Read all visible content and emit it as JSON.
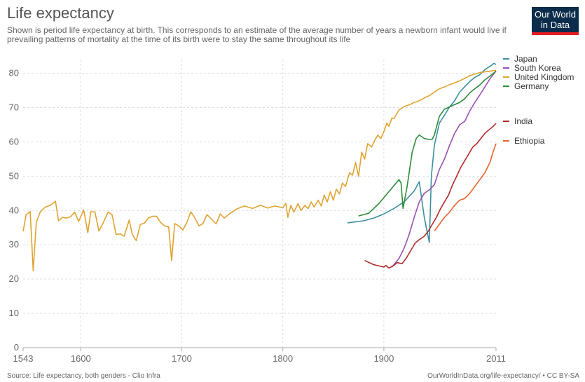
{
  "header": {
    "title": "Life expectancy",
    "subtitle": "Shown is period life expectancy at birth. This corresponds to an estimate of the average number of years a newborn infant would live if prevailing patterns of mortality at the time of its birth were to stay the same throughout its life"
  },
  "logo": {
    "line1": "Our World",
    "line2": "in Data"
  },
  "footer": {
    "source": "Source: Life expectancy, both genders - Clio Infra",
    "credit": "OurWorldInData.org/life-expectancy/ • CC BY-SA"
  },
  "chart_data": {
    "type": "line",
    "title": "Life expectancy",
    "xlabel": "",
    "ylabel": "",
    "xlim": [
      1543,
      2011
    ],
    "ylim": [
      0,
      84
    ],
    "x_ticks": [
      "1543",
      "1600",
      "1700",
      "1800",
      "1900",
      "2011"
    ],
    "x_tick_values": [
      1543,
      1600,
      1700,
      1800,
      1900,
      2011
    ],
    "y_ticks": [
      0,
      10,
      20,
      30,
      40,
      50,
      60,
      70,
      80
    ],
    "grid": true,
    "legend_placement": "right",
    "series": [
      {
        "name": "Japan",
        "color": "#3a8fa0",
        "points": [
          [
            1864,
            36.4
          ],
          [
            1880,
            37.0
          ],
          [
            1890,
            37.8
          ],
          [
            1900,
            39.0
          ],
          [
            1910,
            40.6
          ],
          [
            1920,
            42.5
          ],
          [
            1930,
            45.7
          ],
          [
            1935,
            48.4
          ],
          [
            1940,
            38.0
          ],
          [
            1945,
            30.7
          ],
          [
            1947,
            50.0
          ],
          [
            1950,
            59.0
          ],
          [
            1955,
            65.5
          ],
          [
            1960,
            67.8
          ],
          [
            1965,
            70.2
          ],
          [
            1970,
            72.0
          ],
          [
            1975,
            74.5
          ],
          [
            1980,
            76.1
          ],
          [
            1985,
            77.6
          ],
          [
            1990,
            78.8
          ],
          [
            1995,
            79.6
          ],
          [
            2000,
            81.1
          ],
          [
            2005,
            82.0
          ],
          [
            2009,
            82.9
          ],
          [
            2011,
            82.6
          ]
        ]
      },
      {
        "name": "South Korea",
        "color": "#9a52b4",
        "points": [
          [
            1908,
            23.5
          ],
          [
            1915,
            26.0
          ],
          [
            1920,
            29.0
          ],
          [
            1925,
            33.0
          ],
          [
            1930,
            38.0
          ],
          [
            1935,
            42.5
          ],
          [
            1940,
            45.0
          ],
          [
            1945,
            46.0
          ],
          [
            1950,
            47.5
          ],
          [
            1955,
            52.0
          ],
          [
            1960,
            55.0
          ],
          [
            1965,
            59.0
          ],
          [
            1970,
            62.5
          ],
          [
            1975,
            65.0
          ],
          [
            1980,
            66.0
          ],
          [
            1985,
            69.0
          ],
          [
            1990,
            71.5
          ],
          [
            1995,
            73.7
          ],
          [
            2000,
            76.0
          ],
          [
            2005,
            78.4
          ],
          [
            2011,
            80.7
          ]
        ]
      },
      {
        "name": "United Kingdom",
        "color": "#e0a330",
        "points": [
          [
            1543,
            33.9
          ],
          [
            1546,
            38.8
          ],
          [
            1550,
            39.7
          ],
          [
            1553,
            22.4
          ],
          [
            1556,
            36.5
          ],
          [
            1560,
            39.6
          ],
          [
            1565,
            41.0
          ],
          [
            1570,
            41.5
          ],
          [
            1575,
            42.7
          ],
          [
            1578,
            37.0
          ],
          [
            1582,
            38.0
          ],
          [
            1586,
            37.8
          ],
          [
            1590,
            38.2
          ],
          [
            1594,
            39.5
          ],
          [
            1598,
            36.8
          ],
          [
            1603,
            40.2
          ],
          [
            1607,
            33.5
          ],
          [
            1610,
            39.6
          ],
          [
            1614,
            39.6
          ],
          [
            1618,
            34.0
          ],
          [
            1622,
            36.2
          ],
          [
            1627,
            39.5
          ],
          [
            1631,
            38.8
          ],
          [
            1635,
            33.0
          ],
          [
            1639,
            33.2
          ],
          [
            1643,
            32.5
          ],
          [
            1648,
            37.2
          ],
          [
            1651,
            33.0
          ],
          [
            1655,
            31.2
          ],
          [
            1659,
            35.9
          ],
          [
            1663,
            36.3
          ],
          [
            1667,
            37.8
          ],
          [
            1671,
            38.3
          ],
          [
            1675,
            38.3
          ],
          [
            1679,
            36.5
          ],
          [
            1683,
            35.5
          ],
          [
            1687,
            35.3
          ],
          [
            1690,
            25.4
          ],
          [
            1693,
            36.2
          ],
          [
            1698,
            35.3
          ],
          [
            1701,
            34.3
          ],
          [
            1705,
            36.5
          ],
          [
            1709,
            39.6
          ],
          [
            1713,
            37.8
          ],
          [
            1717,
            35.5
          ],
          [
            1721,
            36.2
          ],
          [
            1725,
            38.8
          ],
          [
            1730,
            37.3
          ],
          [
            1734,
            36.1
          ],
          [
            1738,
            39.0
          ],
          [
            1742,
            37.8
          ],
          [
            1748,
            39.2
          ],
          [
            1755,
            40.5
          ],
          [
            1762,
            41.3
          ],
          [
            1770,
            40.6
          ],
          [
            1778,
            41.5
          ],
          [
            1785,
            40.7
          ],
          [
            1792,
            41.3
          ],
          [
            1800,
            40.8
          ],
          [
            1803,
            42.1
          ],
          [
            1805,
            38.0
          ],
          [
            1808,
            41.5
          ],
          [
            1811,
            39.5
          ],
          [
            1815,
            42.0
          ],
          [
            1818,
            40.0
          ],
          [
            1822,
            41.5
          ],
          [
            1825,
            40.5
          ],
          [
            1828,
            42.5
          ],
          [
            1831,
            41.0
          ],
          [
            1835,
            43.0
          ],
          [
            1838,
            41.3
          ],
          [
            1841,
            44.5
          ],
          [
            1844,
            42.5
          ],
          [
            1847,
            45.5
          ],
          [
            1850,
            43.0
          ],
          [
            1853,
            46.2
          ],
          [
            1856,
            44.8
          ],
          [
            1859,
            48.0
          ],
          [
            1862,
            47.0
          ],
          [
            1866,
            51.0
          ],
          [
            1869,
            50.3
          ],
          [
            1872,
            54.0
          ],
          [
            1875,
            50.0
          ],
          [
            1878,
            57.0
          ],
          [
            1881,
            55.0
          ],
          [
            1884,
            59.5
          ],
          [
            1888,
            58.5
          ],
          [
            1891,
            60.5
          ],
          [
            1894,
            62.0
          ],
          [
            1897,
            61.0
          ],
          [
            1900,
            63.0
          ],
          [
            1903,
            65.5
          ],
          [
            1905,
            64.5
          ],
          [
            1908,
            67.0
          ],
          [
            1910,
            66.8
          ],
          [
            1915,
            69.3
          ],
          [
            1920,
            70.3
          ],
          [
            1925,
            70.8
          ],
          [
            1930,
            71.5
          ],
          [
            1935,
            72.0
          ],
          [
            1940,
            72.8
          ],
          [
            1945,
            73.5
          ],
          [
            1950,
            74.5
          ],
          [
            1955,
            75.5
          ],
          [
            1960,
            76.0
          ],
          [
            1965,
            76.7
          ],
          [
            1970,
            77.2
          ],
          [
            1975,
            77.8
          ],
          [
            1980,
            78.5
          ],
          [
            1985,
            79.3
          ],
          [
            1990,
            79.8
          ],
          [
            1995,
            80.2
          ],
          [
            2000,
            80.4
          ],
          [
            2011,
            80.9
          ]
        ]
      },
      {
        "name": "Germany",
        "color": "#2e8b3b",
        "points": [
          [
            1875,
            38.4
          ],
          [
            1885,
            39.2
          ],
          [
            1895,
            42.0
          ],
          [
            1905,
            45.5
          ],
          [
            1915,
            49.0
          ],
          [
            1917,
            48.0
          ],
          [
            1919,
            40.6
          ],
          [
            1923,
            47.0
          ],
          [
            1928,
            57.0
          ],
          [
            1932,
            61.0
          ],
          [
            1935,
            62.0
          ],
          [
            1940,
            61.0
          ],
          [
            1945,
            60.7
          ],
          [
            1948,
            60.8
          ],
          [
            1950,
            62.0
          ],
          [
            1955,
            67.5
          ],
          [
            1960,
            69.5
          ],
          [
            1965,
            70.2
          ],
          [
            1970,
            70.9
          ],
          [
            1975,
            71.5
          ],
          [
            1980,
            72.6
          ],
          [
            1985,
            74.3
          ],
          [
            1990,
            75.5
          ],
          [
            1995,
            76.6
          ],
          [
            2000,
            78.1
          ],
          [
            2005,
            79.2
          ],
          [
            2011,
            80.6
          ]
        ]
      },
      {
        "name": "India",
        "color": "#b22a2a",
        "points": [
          [
            1881,
            25.4
          ],
          [
            1890,
            24.2
          ],
          [
            1900,
            23.5
          ],
          [
            1902,
            24.0
          ],
          [
            1905,
            23.2
          ],
          [
            1910,
            24.0
          ],
          [
            1913,
            24.8
          ],
          [
            1918,
            24.5
          ],
          [
            1922,
            26.0
          ],
          [
            1927,
            28.5
          ],
          [
            1931,
            30.5
          ],
          [
            1935,
            31.5
          ],
          [
            1940,
            32.5
          ],
          [
            1944,
            34.0
          ],
          [
            1948,
            36.0
          ],
          [
            1952,
            38.0
          ],
          [
            1956,
            40.5
          ],
          [
            1960,
            42.5
          ],
          [
            1964,
            44.5
          ],
          [
            1968,
            47.5
          ],
          [
            1972,
            50.0
          ],
          [
            1976,
            52.5
          ],
          [
            1980,
            54.5
          ],
          [
            1984,
            56.5
          ],
          [
            1988,
            58.5
          ],
          [
            1992,
            59.5
          ],
          [
            1996,
            61.0
          ],
          [
            2000,
            62.5
          ],
          [
            2004,
            63.5
          ],
          [
            2008,
            64.5
          ],
          [
            2011,
            65.4
          ]
        ]
      },
      {
        "name": "Ethiopia",
        "color": "#e2642c",
        "points": [
          [
            1950,
            34.0
          ],
          [
            1955,
            36.0
          ],
          [
            1960,
            38.0
          ],
          [
            1965,
            39.5
          ],
          [
            1970,
            41.5
          ],
          [
            1975,
            43.0
          ],
          [
            1980,
            43.5
          ],
          [
            1985,
            45.0
          ],
          [
            1990,
            47.0
          ],
          [
            1995,
            49.0
          ],
          [
            2000,
            51.0
          ],
          [
            2005,
            54.0
          ],
          [
            2008,
            57.0
          ],
          [
            2011,
            59.5
          ]
        ]
      }
    ]
  }
}
